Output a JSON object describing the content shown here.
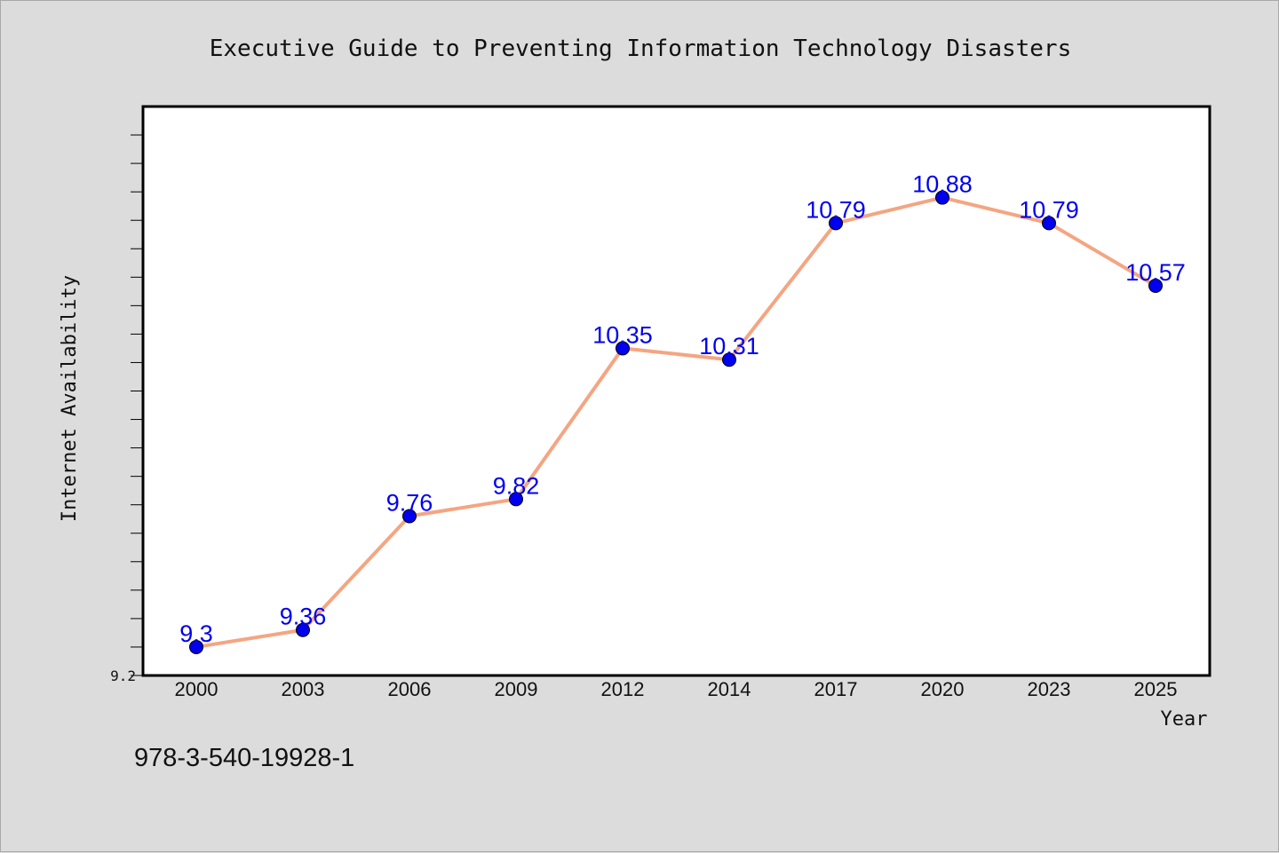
{
  "chart_data": {
    "type": "line",
    "title": "Executive Guide to Preventing Information Technology Disasters",
    "xlabel": "Year",
    "ylabel": "Internet Availability",
    "categories": [
      "2000",
      "2003",
      "2006",
      "2009",
      "2012",
      "2014",
      "2017",
      "2020",
      "2023",
      "2025"
    ],
    "series": [
      {
        "values": [
          9.3,
          9.36,
          9.76,
          9.82,
          10.35,
          10.31,
          10.79,
          10.88,
          10.79,
          10.57
        ],
        "data_labels": [
          "9.3",
          "9.36",
          "9.76",
          "9.82",
          "10.35",
          "10.31",
          "10.79",
          "10.88",
          "10.79",
          "10.57"
        ]
      }
    ],
    "ylim": [
      9.2,
      11.2
    ],
    "y_tick_labels": [
      "9.2"
    ],
    "grid": false,
    "legend": "none",
    "colors": {
      "line": "#f4a582",
      "marker": "#0000ee",
      "data_label": "#0000ee",
      "plot_background": "#ffffff",
      "figure_background": "#dcdcdc"
    }
  },
  "footer": {
    "isbn": "978-3-540-19928-1"
  }
}
